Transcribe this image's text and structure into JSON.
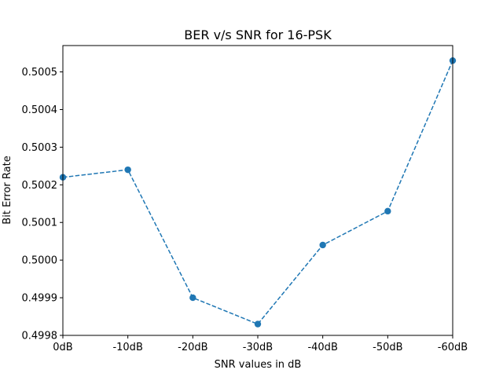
{
  "chart_data": {
    "type": "line",
    "title": "BER v/s SNR for 16-PSK",
    "xlabel": "SNR values in dB",
    "ylabel": "Bit Error Rate",
    "categories": [
      "0dB",
      "-10dB",
      "-20dB",
      "-30dB",
      "-40dB",
      "-50dB",
      "-60dB"
    ],
    "series": [
      {
        "values": [
          0.50022,
          0.50024,
          0.4999,
          0.49983,
          0.50004,
          0.50013,
          0.50053
        ],
        "color": "#1f77b4",
        "line_style": "dashed",
        "marker": "circle"
      }
    ],
    "yticks": [
      "0.4998",
      "0.4999",
      "0.5000",
      "0.5001",
      "0.5002",
      "0.5003",
      "0.5004",
      "0.5005"
    ],
    "ylim": [
      0.4998,
      0.50057
    ],
    "grid": false,
    "legend": "none"
  }
}
